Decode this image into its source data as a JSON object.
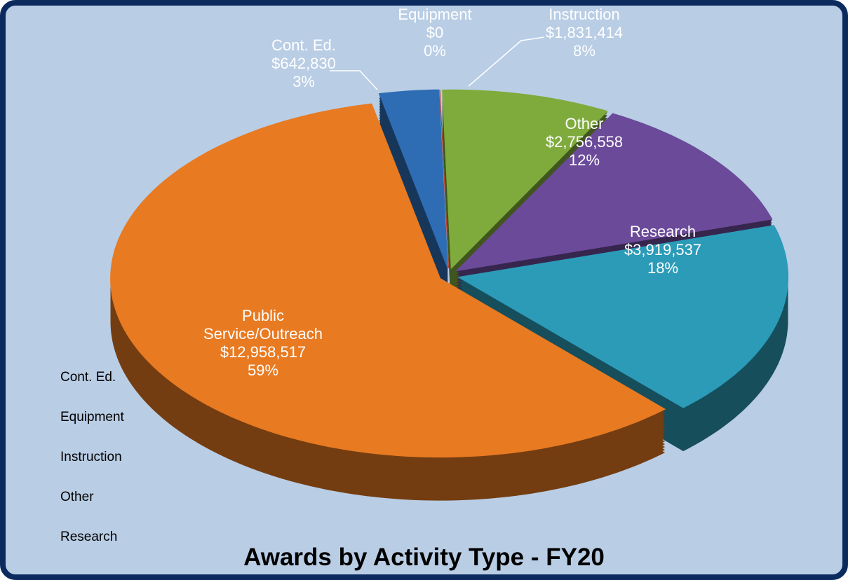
{
  "chart_data": {
    "type": "pie3d",
    "title": "Awards  by Activity Type - FY20",
    "categories": [
      "Cont. Ed.",
      "Equipment",
      "Instruction",
      "Other",
      "Research",
      "Public Service/Outreach"
    ],
    "values": [
      642830,
      0,
      1831414,
      2756558,
      3919537,
      12958517
    ],
    "value_labels": [
      "$642,830",
      "$0",
      "$1,831,414",
      "$2,756,558",
      "$3,919,537",
      "$12,958,517"
    ],
    "percent_labels": [
      "3%",
      "0%",
      "8%",
      "12%",
      "18%",
      "59%"
    ],
    "colors": [
      "#2e6db4",
      "#c0392b",
      "#7fab3c",
      "#6b4a9a",
      "#2b9bb8",
      "#e87a22"
    ],
    "legend": "left",
    "legend_entries": [
      0,
      1,
      2,
      3,
      4
    ]
  }
}
